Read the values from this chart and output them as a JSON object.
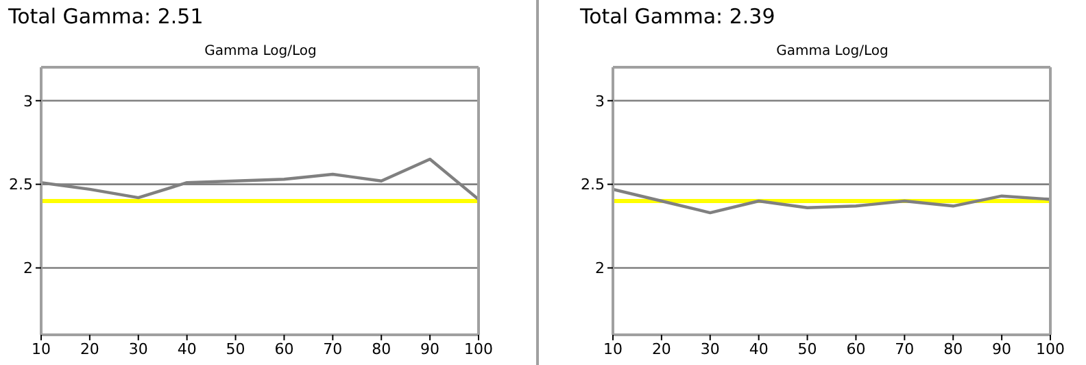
{
  "chart_data": [
    {
      "type": "line",
      "title": "Total Gamma: 2.51",
      "subtitle": "Gamma Log/Log",
      "x": [
        10,
        20,
        30,
        40,
        50,
        60,
        70,
        80,
        90,
        100
      ],
      "series": [
        {
          "color": "#808080",
          "values": [
            2.51,
            2.47,
            2.42,
            2.51,
            2.52,
            2.53,
            2.56,
            2.52,
            2.65,
            2.41
          ]
        }
      ],
      "xlim": [
        10,
        100
      ],
      "xticks": [
        10,
        20,
        30,
        40,
        50,
        60,
        70,
        80,
        90,
        100
      ],
      "ylim": [
        1.6,
        3.2
      ],
      "yticks": [
        2,
        2.5,
        3
      ],
      "grid": "y",
      "ref_lines": [
        {
          "axis": "y",
          "value": 2.4,
          "color": "#ffff00"
        }
      ]
    },
    {
      "type": "line",
      "title": "Total Gamma: 2.39",
      "subtitle": "Gamma Log/Log",
      "x": [
        10,
        20,
        30,
        40,
        50,
        60,
        70,
        80,
        90,
        100
      ],
      "series": [
        {
          "color": "#808080",
          "values": [
            2.47,
            2.4,
            2.33,
            2.4,
            2.36,
            2.37,
            2.4,
            2.37,
            2.43,
            2.41
          ]
        }
      ],
      "xlim": [
        10,
        100
      ],
      "xticks": [
        10,
        20,
        30,
        40,
        50,
        60,
        70,
        80,
        90,
        100
      ],
      "ylim": [
        1.6,
        3.2
      ],
      "yticks": [
        2,
        2.5,
        3
      ],
      "grid": "y",
      "ref_lines": [
        {
          "axis": "y",
          "value": 2.4,
          "color": "#ffff00"
        }
      ]
    }
  ]
}
